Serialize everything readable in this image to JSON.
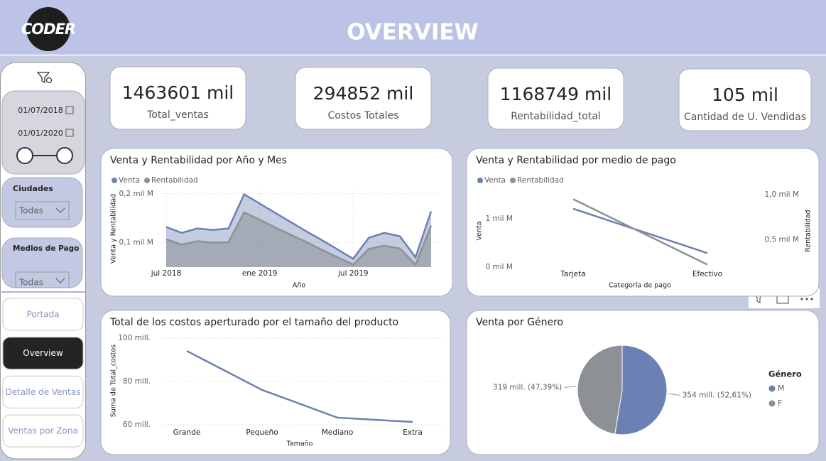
{
  "header": {
    "logo": "CODER",
    "title": "OVERVIEW"
  },
  "filters": {
    "date_from": "01/07/2018",
    "date_to": "01/01/2020",
    "cities": {
      "label": "Ciudades",
      "value": "Todas"
    },
    "payment": {
      "label": "Medios de Pago",
      "value": "Todas"
    }
  },
  "nav": {
    "items": [
      "Portada",
      "Overview",
      "Detalle de Ventas",
      "Ventas por Zona"
    ],
    "active": 1
  },
  "kpis": [
    {
      "value": "1463601 mil",
      "label": "Total_ventas"
    },
    {
      "value": "294852 mil",
      "label": "Costos Totales"
    },
    {
      "value": "1168749 mil",
      "label": "Rentabilidad_total"
    },
    {
      "value": "105 mil",
      "label": "Cantidad de U. Vendidas"
    }
  ],
  "chart_data": [
    {
      "type": "area",
      "title": "Venta y Rentabilidad por Año y Mes",
      "x_label": "Año",
      "y_label": "Venta y Rentabilidad",
      "categories": [
        "jul 2018",
        null,
        null,
        null,
        null,
        null,
        "ene 2019",
        null,
        null,
        null,
        null,
        null,
        "jul 2019",
        null,
        null,
        null,
        null,
        null
      ],
      "series": [
        {
          "name": "Venta",
          "color": "#6b80b3",
          "values": [
            0.132,
            0.12,
            0.129,
            0.126,
            0.129,
            0.199,
            0.18,
            0.161,
            0.142,
            0.123,
            0.105,
            0.086,
            0.067,
            0.11,
            0.12,
            0.113,
            0.07,
            0.164
          ]
        },
        {
          "name": "Rentabilidad",
          "color": "#8d9094",
          "values": [
            0.107,
            0.096,
            0.103,
            0.1,
            0.101,
            0.162,
            0.147,
            0.131,
            0.116,
            0.101,
            0.085,
            0.07,
            0.055,
            0.087,
            0.094,
            0.088,
            0.055,
            0.135
          ]
        }
      ],
      "ylim": [
        0.05,
        0.207
      ],
      "yticks": [
        {
          "value": 0.1,
          "label": "0,1 mil M"
        },
        {
          "value": 0.2,
          "label": "0,2 mil M"
        }
      ],
      "grid": true,
      "legend": "top-left"
    },
    {
      "type": "line",
      "title": "Venta y Rentabilidad por medio de pago",
      "x_label": "Categoría de pago",
      "y_label": "Venta",
      "y2_label": "Rentabilidad",
      "categories": [
        "Tarjeta",
        "Efectivo"
      ],
      "series": [
        {
          "name": "Venta",
          "color": "#6b80b3",
          "values": [
            1.21,
            0.29
          ]
        },
        {
          "name": "Rentabilidad",
          "color": "#8d9094",
          "values": [
            0.95,
            0.227
          ],
          "axis": "y2"
        }
      ],
      "ylim": [
        0,
        1.59
      ],
      "yticks": [
        {
          "value": 0,
          "label": "0 mil M"
        },
        {
          "value": 1,
          "label": "1 mil M"
        }
      ],
      "y2lim": [
        0.2,
        1.047
      ],
      "y2ticks": [
        {
          "value": 0.5,
          "label": "0,5 mil M"
        },
        {
          "value": 1,
          "label": "1,0 mil M"
        }
      ],
      "legend": "top-left"
    },
    {
      "type": "line",
      "title": "Total de los costos aperturado por el tamaño del producto",
      "x_label": "Tamaño",
      "y_label": "Suma de Total_costos",
      "categories": [
        "Grande",
        "Pequeño",
        "Mediano",
        "Extra"
      ],
      "series": [
        {
          "color": "#6b80b3",
          "values": [
            94.1,
            76.1,
            63.3,
            61.3
          ]
        }
      ],
      "ylim": [
        60,
        102
      ],
      "yticks": [
        {
          "value": 60,
          "label": "60 mill."
        },
        {
          "value": 80,
          "label": "80 mill."
        },
        {
          "value": 100,
          "label": "100 mill."
        }
      ],
      "grid": true
    },
    {
      "type": "pie",
      "title": "Venta por Género",
      "legend_title": "Género",
      "categories": [
        "M",
        "F"
      ],
      "values": [
        354,
        319
      ],
      "value_labels": [
        "354 mill. (52,61%)",
        "319 mill. (47,39%)"
      ],
      "colors": [
        "#6b80b3",
        "#8d9094"
      ],
      "legend": "right"
    }
  ]
}
